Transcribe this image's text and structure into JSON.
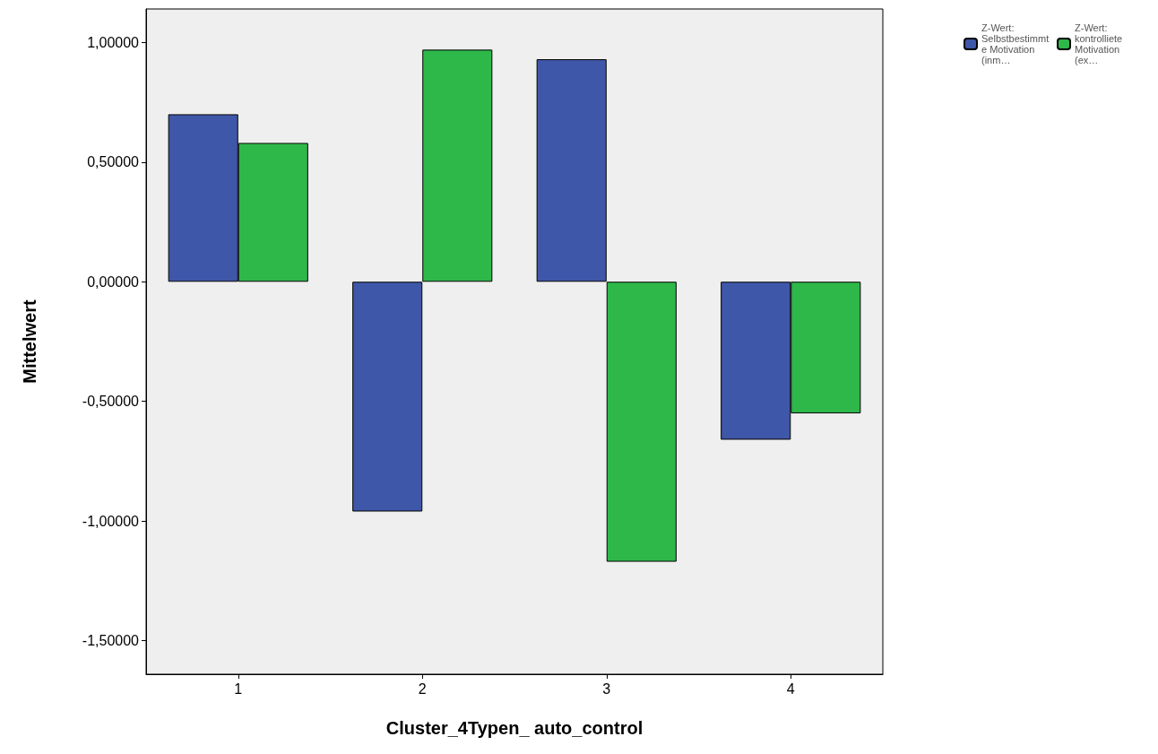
{
  "chart_data": {
    "type": "bar",
    "xlabel": "Cluster_4Typen_ auto_control",
    "ylabel": "Mittelwert",
    "categories": [
      "1",
      "2",
      "3",
      "4"
    ],
    "series": [
      {
        "name": "Z-Wert: Selbstbestimmte Motivation (inm…",
        "color": "#3f57a8",
        "values": [
          0.7,
          -0.96,
          0.93,
          -0.66
        ]
      },
      {
        "name": "Z-Wert: kontrolliete Motivation (ex…",
        "color": "#2eb84a",
        "values": [
          0.58,
          0.97,
          -1.17,
          -0.55
        ]
      }
    ],
    "ylim": [
      -1.64,
      1.14
    ],
    "yticks": [
      {
        "value": -1.5,
        "label": "-1,50000"
      },
      {
        "value": -1,
        "label": "-1,00000"
      },
      {
        "value": -0.5,
        "label": "-0,50000"
      },
      {
        "value": 0,
        "label": "0,00000"
      },
      {
        "value": 0.5,
        "label": "0,50000"
      },
      {
        "value": 1,
        "label": "1,00000"
      }
    ],
    "grid": false,
    "legend": "top right"
  }
}
